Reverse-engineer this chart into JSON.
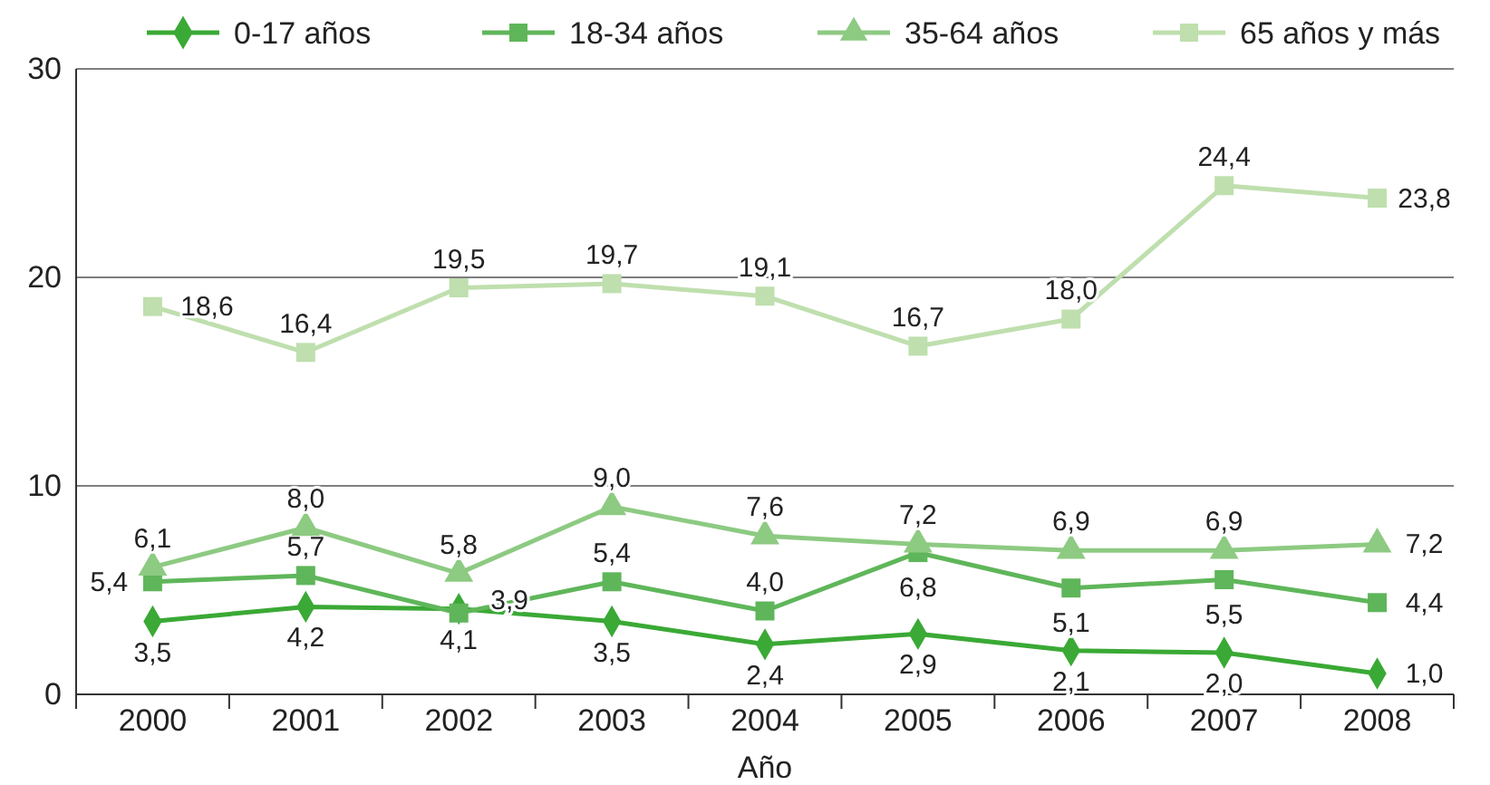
{
  "chart_data": {
    "type": "line",
    "xlabel": "Año",
    "categories": [
      "2000",
      "2001",
      "2002",
      "2003",
      "2004",
      "2005",
      "2006",
      "2007",
      "2008"
    ],
    "ylim": [
      0,
      30
    ],
    "yticks": [
      0,
      10,
      20,
      30
    ],
    "grid": "y",
    "legend": "top",
    "series": [
      {
        "name": "0-17 años",
        "color": "#3aa935",
        "marker": "diamond",
        "values": [
          3.5,
          4.2,
          4.1,
          3.5,
          2.4,
          2.9,
          2.1,
          2.0,
          1.0
        ],
        "value_labels": [
          "3,5",
          "4,2",
          "4,1",
          "3,5",
          "2,4",
          "2,9",
          "2,1",
          "2,0",
          "1,0"
        ]
      },
      {
        "name": "18-34 años",
        "color": "#5fb65a",
        "marker": "square",
        "values": [
          5.4,
          5.7,
          3.9,
          5.4,
          4.0,
          6.8,
          5.1,
          5.5,
          4.4
        ],
        "value_labels": [
          "5,4",
          "5,7",
          "3,9",
          "5,4",
          "4,0",
          "6,8",
          "5,1",
          "5,5",
          "4,4"
        ]
      },
      {
        "name": "35-64 años",
        "color": "#8dca82",
        "marker": "triangle",
        "values": [
          6.1,
          8.0,
          5.8,
          9.0,
          7.6,
          7.2,
          6.9,
          6.9,
          7.2
        ],
        "value_labels": [
          "6,1",
          "8,0",
          "5,8",
          "9,0",
          "7,6",
          "7,2",
          "6,9",
          "6,9",
          "7,2"
        ]
      },
      {
        "name": "65 años y más",
        "color": "#bfdfae",
        "marker": "square",
        "values": [
          18.6,
          16.4,
          19.5,
          19.7,
          19.1,
          16.7,
          18.0,
          24.4,
          23.8
        ],
        "value_labels": [
          "18,6",
          "16,4",
          "19,5",
          "19,7",
          "19,1",
          "16,7",
          "18,0",
          "24,4",
          "23,8"
        ]
      }
    ]
  }
}
